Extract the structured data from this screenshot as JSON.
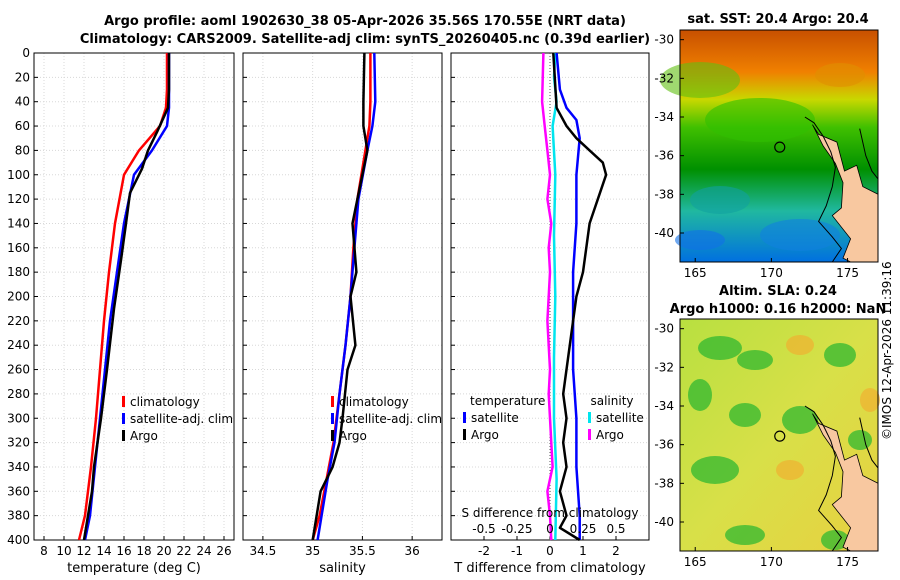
{
  "header": {
    "title_line1": "Argo profile: aoml 1902630_38 05-Apr-2026 35.56S 170.55E (NRT data)",
    "title_line2": "Climatology: CARS2009. Satellite-adj clim: synTS_20260405.nc (0.39d earlier)"
  },
  "credit": "©IMOS 12-Apr-2026 11:39:16",
  "colors": {
    "climatology": "#ff0000",
    "satellite": "#0000ff",
    "argo": "#000000",
    "salinity_satellite": "#00e5ee",
    "salinity_argo": "#ff00ff",
    "land": "#f8c8a0"
  },
  "chart_data": [
    {
      "type": "line",
      "xlabel": "temperature (deg C)",
      "ylabel": "depth",
      "xlim": [
        7,
        27
      ],
      "ylim": [
        400,
        0
      ],
      "xticks": [
        8,
        10,
        12,
        14,
        16,
        18,
        20,
        22,
        24,
        26
      ],
      "yticks": [
        0,
        20,
        40,
        60,
        80,
        100,
        120,
        140,
        160,
        180,
        200,
        220,
        240,
        260,
        280,
        300,
        320,
        340,
        360,
        380,
        400
      ],
      "legend": [
        "climatology",
        "satellite-adj. clim",
        "Argo"
      ],
      "series": [
        {
          "name": "climatology",
          "x": [
            20.3,
            20.3,
            20.2,
            19.6,
            17.5,
            16.0,
            15.1,
            14.5,
            14.0,
            13.6,
            13.2,
            12.7,
            12.1,
            11.5
          ],
          "depth": [
            0,
            30,
            45,
            60,
            80,
            100,
            140,
            180,
            220,
            260,
            300,
            340,
            380,
            400
          ]
        },
        {
          "name": "satellite-adj. clim",
          "x": [
            20.5,
            20.5,
            20.5,
            20.3,
            18.8,
            17.0,
            16.0,
            15.3,
            14.6,
            14.1,
            13.6,
            13.1,
            12.6,
            12.1
          ],
          "depth": [
            0,
            30,
            45,
            60,
            80,
            100,
            140,
            180,
            220,
            260,
            300,
            340,
            380,
            400
          ]
        },
        {
          "name": "Argo",
          "x": [
            20.5,
            20.5,
            20.4,
            19.3,
            18.4,
            17.8,
            16.6,
            16.2,
            15.7,
            15.0,
            14.3,
            13.7,
            13.0,
            12.8,
            12.3,
            12.0
          ],
          "depth": [
            0,
            30,
            45,
            65,
            80,
            95,
            115,
            140,
            170,
            210,
            260,
            300,
            340,
            360,
            385,
            400
          ]
        }
      ]
    },
    {
      "type": "line",
      "xlabel": "salinity",
      "xlim": [
        34.3,
        36.3
      ],
      "ylim": [
        400,
        0
      ],
      "xticks": [
        "34.5",
        "35",
        "35.5",
        "36"
      ],
      "legend": [
        "climatology",
        "satellite-adj. clim",
        "Argo"
      ],
      "series": [
        {
          "name": "climatology",
          "x": [
            35.58,
            35.58,
            35.57,
            35.53,
            35.45,
            35.41,
            35.38,
            35.33,
            35.27,
            35.21,
            35.14,
            35.07,
            35.0
          ],
          "depth": [
            0,
            40,
            60,
            80,
            120,
            160,
            200,
            240,
            280,
            320,
            350,
            380,
            400
          ]
        },
        {
          "name": "satellite-adj. clim",
          "x": [
            35.62,
            35.63,
            35.6,
            35.55,
            35.46,
            35.42,
            35.38,
            35.33,
            35.27,
            35.22,
            35.15,
            35.09,
            35.05
          ],
          "depth": [
            0,
            40,
            60,
            80,
            120,
            160,
            200,
            240,
            280,
            320,
            350,
            380,
            400
          ]
        },
        {
          "name": "Argo",
          "x": [
            35.52,
            35.51,
            35.51,
            35.55,
            35.5,
            35.45,
            35.4,
            35.44,
            35.38,
            35.43,
            35.35,
            35.3,
            35.27,
            35.2,
            35.08,
            35.0
          ],
          "depth": [
            0,
            40,
            60,
            80,
            100,
            120,
            140,
            180,
            200,
            240,
            260,
            300,
            320,
            340,
            360,
            400
          ]
        }
      ]
    },
    {
      "type": "line",
      "xlabel": "T difference from climatology",
      "xlabel_top": "S difference from climatology",
      "xlim": [
        -3,
        3
      ],
      "ylim": [
        400,
        0
      ],
      "xticks": [
        "-2",
        "-1",
        "0",
        "1",
        "2"
      ],
      "xticks_top": [
        "-0.5",
        "-0.25",
        "0",
        "0.25",
        "0.5"
      ],
      "legend_left_title": "temperature",
      "legend_left": [
        "satellite",
        "Argo"
      ],
      "legend_right_title": "salinity",
      "legend_right": [
        "satellite",
        "Argo"
      ],
      "series": [
        {
          "name": "T satellite",
          "x": [
            0.2,
            0.3,
            0.5,
            0.8,
            0.9,
            0.8,
            0.8,
            0.7,
            0.7,
            0.7,
            0.8,
            0.8,
            0.9,
            0.9
          ],
          "depth": [
            0,
            30,
            45,
            55,
            70,
            100,
            140,
            180,
            220,
            260,
            300,
            340,
            380,
            400
          ]
        },
        {
          "name": "T Argo",
          "x": [
            0.1,
            0.2,
            0.5,
            0.8,
            1.2,
            1.6,
            1.7,
            1.2,
            1.0,
            0.8,
            0.6,
            0.4,
            0.5,
            0.4,
            0.5,
            0.3,
            0.5,
            0.3,
            0.9
          ],
          "depth": [
            0,
            45,
            60,
            70,
            80,
            90,
            100,
            140,
            180,
            200,
            240,
            280,
            300,
            320,
            340,
            360,
            380,
            390,
            400
          ]
        },
        {
          "name": "S satellite",
          "x": [
            0.04,
            0.03,
            0.05,
            0.02,
            0.04,
            0.03,
            0.04,
            0.03,
            0.03,
            0.05,
            0.04
          ],
          "depth": [
            0,
            20,
            40,
            60,
            100,
            150,
            200,
            250,
            300,
            350,
            400
          ]
        },
        {
          "name": "S Argo",
          "x": [
            -0.05,
            -0.06,
            -0.04,
            -0.02,
            0.0,
            -0.02,
            0.01,
            -0.01,
            0.0,
            -0.02,
            0.0,
            -0.01,
            0.0,
            0.02,
            -0.02,
            0.0,
            0.01
          ],
          "depth": [
            0,
            40,
            60,
            80,
            100,
            120,
            140,
            160,
            180,
            220,
            260,
            280,
            300,
            340,
            360,
            380,
            400
          ]
        }
      ]
    },
    {
      "type": "heatmap",
      "title": "sat. SST: 20.4  Argo: 20.4",
      "xlim": [
        164,
        177
      ],
      "ylim": [
        -41.5,
        -29.5
      ],
      "xticks": [
        "165",
        "170",
        "175"
      ],
      "yticks": [
        "-30",
        "-32",
        "-34",
        "-36",
        "-38",
        "-40"
      ],
      "argo_position": {
        "lon": 170.55,
        "lat": -35.56
      }
    },
    {
      "type": "heatmap",
      "title_line1": "Altim. SLA: 0.24",
      "title_line2": "Argo h1000: 0.16 h2000: NaN",
      "xlim": [
        164,
        177
      ],
      "ylim": [
        -41.5,
        -29.5
      ],
      "xticks": [
        "165",
        "170",
        "175"
      ],
      "yticks": [
        "-30",
        "-32",
        "-34",
        "-36",
        "-38",
        "-40"
      ],
      "argo_position": {
        "lon": 170.55,
        "lat": -35.56
      }
    }
  ]
}
